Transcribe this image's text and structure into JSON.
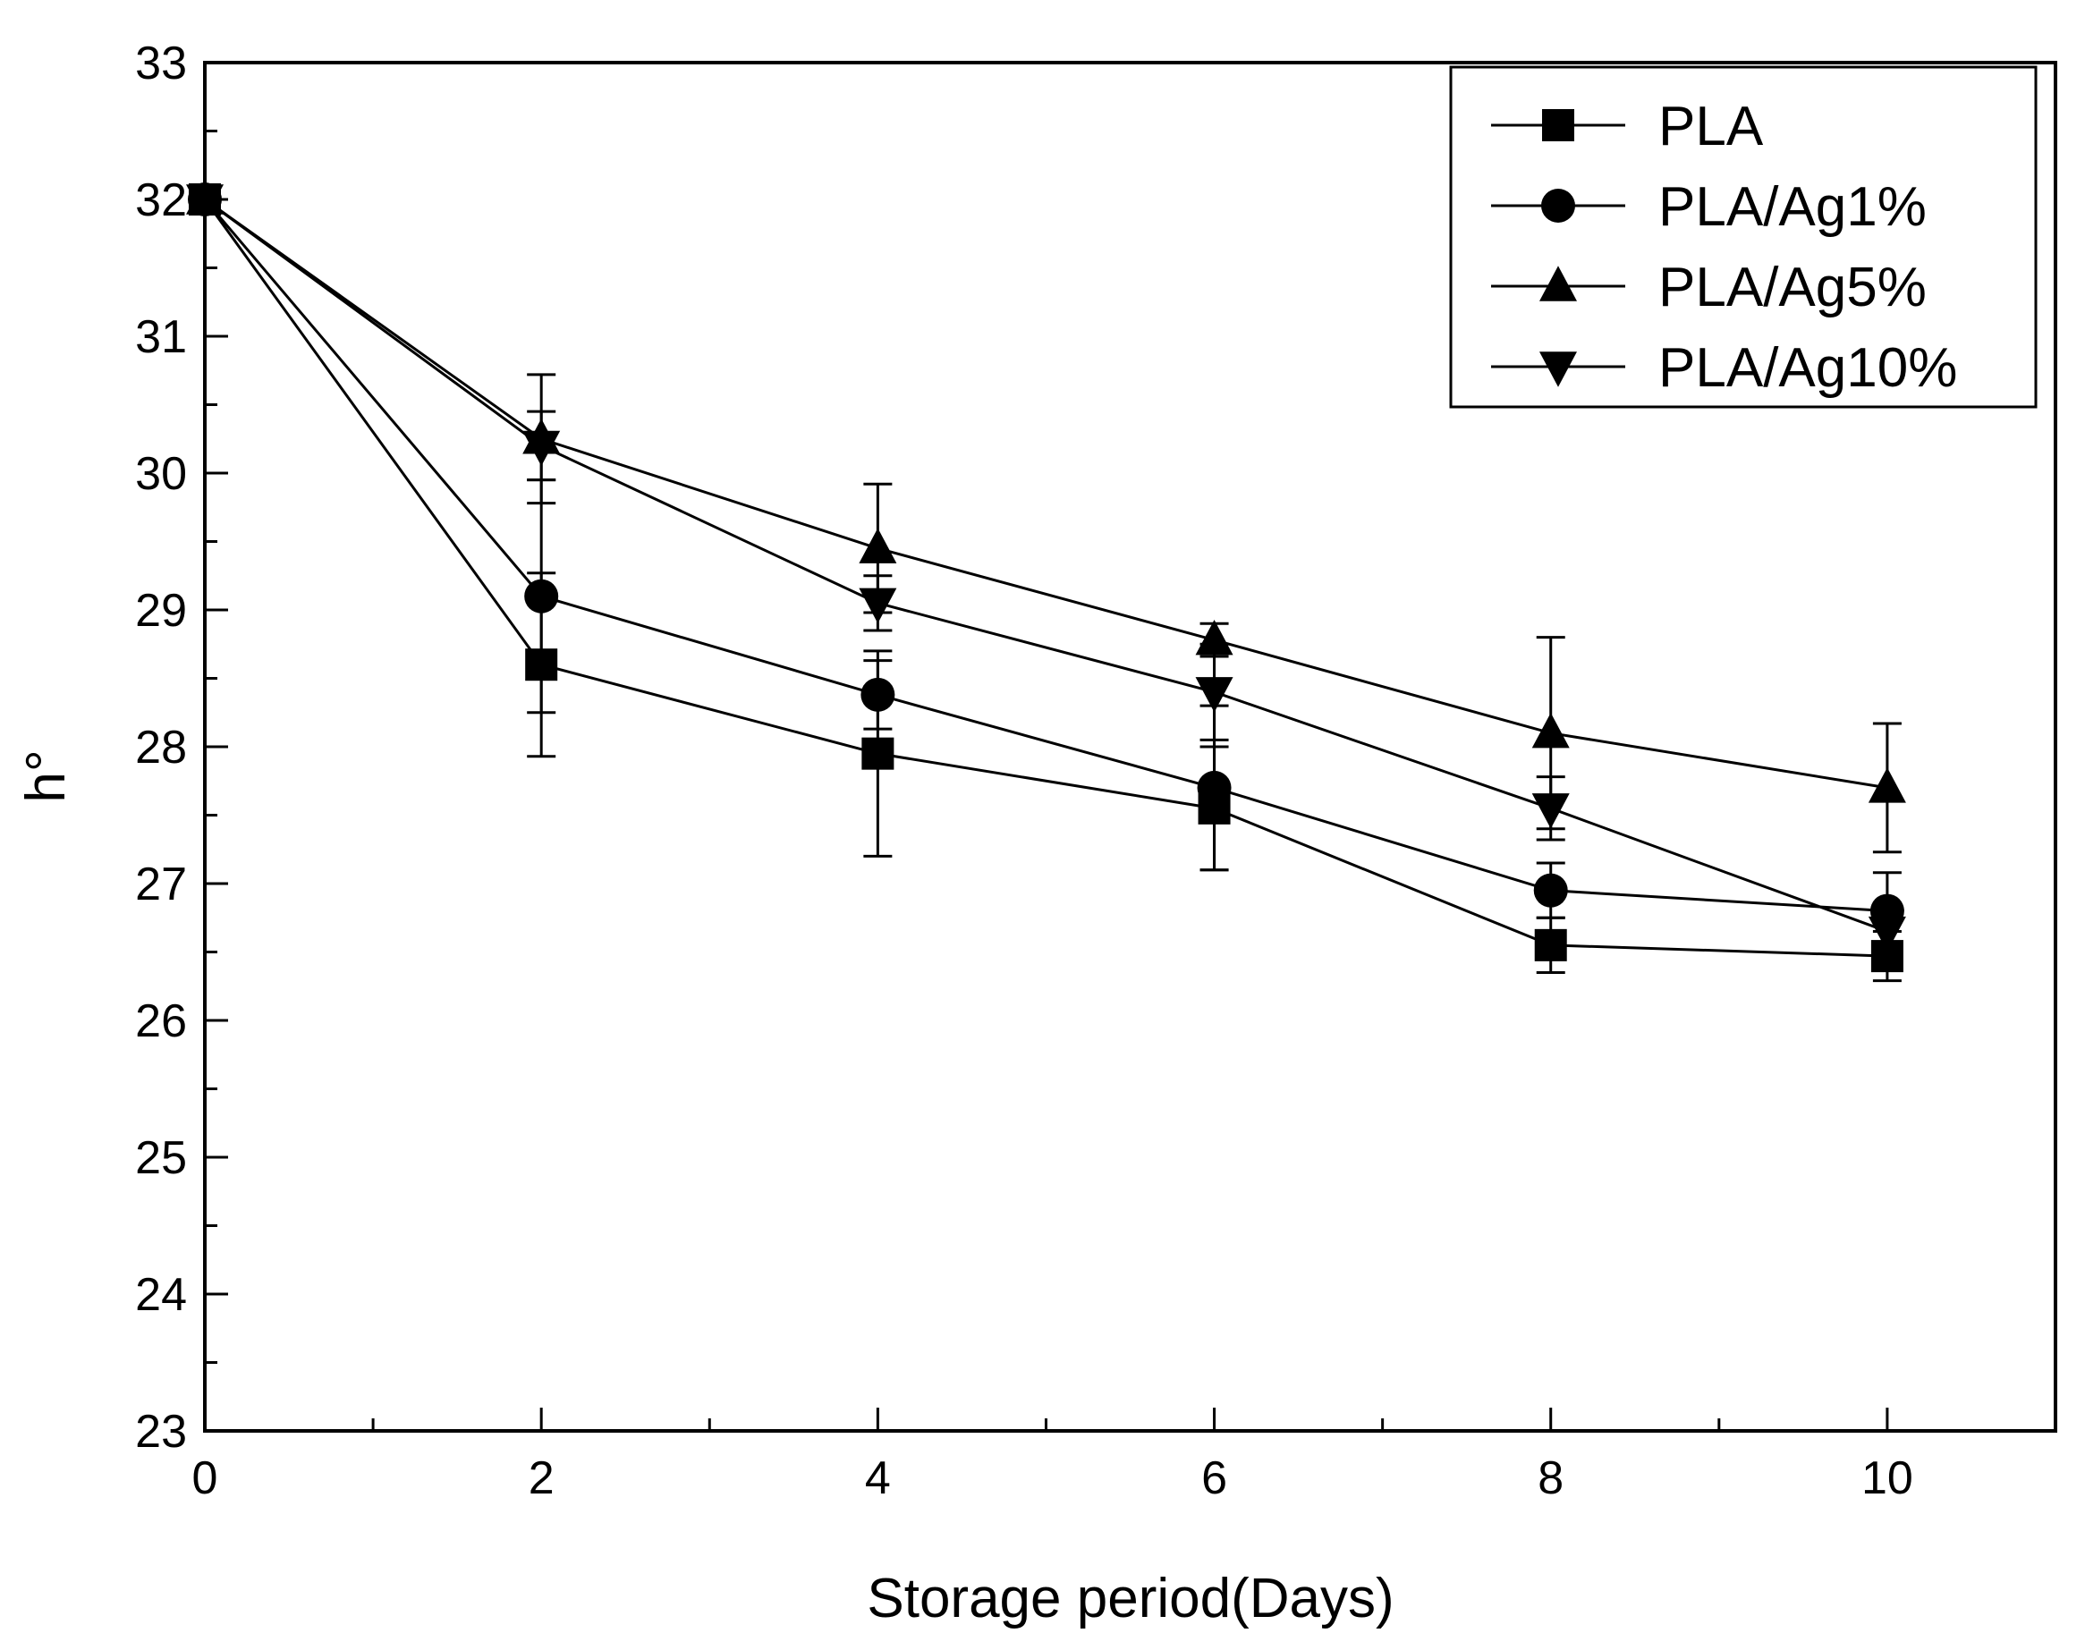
{
  "chart_data": {
    "type": "line",
    "xlabel": "Storage period(Days)",
    "ylabel": "h°",
    "xlim": [
      0,
      11
    ],
    "ylim": [
      23,
      33
    ],
    "xticks": [
      0,
      2,
      4,
      6,
      8,
      10
    ],
    "yticks": [
      23,
      24,
      25,
      26,
      27,
      28,
      29,
      30,
      31,
      32,
      33
    ],
    "grid": false,
    "legend_position": "top-right",
    "error_bars": true,
    "x": [
      0,
      2,
      4,
      6,
      8,
      10
    ],
    "series": [
      {
        "name": "PLA",
        "marker": "square",
        "values": [
          32.0,
          28.6,
          27.95,
          27.55,
          26.55,
          26.47
        ],
        "errors": [
          0.05,
          0.67,
          0.75,
          0.45,
          0.2,
          0.18
        ]
      },
      {
        "name": "PLA/Ag1%",
        "marker": "circle",
        "values": [
          32.0,
          29.1,
          28.38,
          27.7,
          26.95,
          26.8
        ],
        "errors": [
          0.05,
          0.85,
          0.25,
          0.6,
          0.2,
          0.28
        ]
      },
      {
        "name": "PLA/Ag5%",
        "marker": "triangle-up",
        "values": [
          32.0,
          30.25,
          29.45,
          28.78,
          28.1,
          27.7
        ],
        "errors": [
          0.05,
          0.47,
          0.47,
          0.12,
          0.7,
          0.47
        ]
      },
      {
        "name": "PLA/Ag10%",
        "marker": "triangle-down",
        "values": [
          32.0,
          30.2,
          29.05,
          28.4,
          27.55,
          26.65
        ],
        "errors": [
          0.05,
          0.25,
          0.2,
          0.35,
          0.23,
          0.15
        ]
      }
    ]
  }
}
